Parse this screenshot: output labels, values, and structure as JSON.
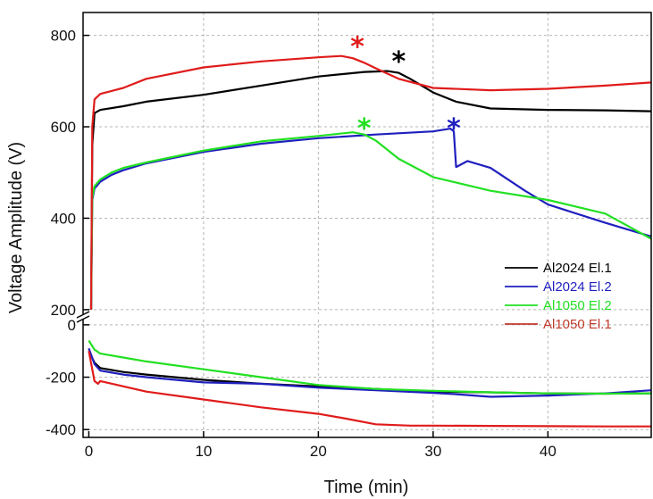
{
  "chart_data": {
    "type": "line",
    "title": "",
    "xlabel": "Time (min)",
    "ylabel": "Voltage Amplitude (V)",
    "xlim": [
      -0.5,
      49
    ],
    "x_ticks": [
      0,
      10,
      20,
      30,
      40
    ],
    "y_upper": {
      "ylim": [
        190,
        850
      ],
      "ticks": [
        200,
        400,
        600,
        800
      ]
    },
    "y_lower": {
      "ylim": [
        -430,
        20
      ],
      "ticks": [
        0,
        -200,
        -400
      ]
    },
    "axis_break": true,
    "grid": true,
    "grid_style": "dashed",
    "legend_position": "lower-right of upper panel",
    "colors": {
      "Al2024 El.1": "#000000",
      "Al2024 El.2": "#1f1fbf",
      "Al1050 El.2": "#22e022",
      "Al1050 El.1": "#e01b1b",
      "Al1050 El.1 legend": "#c0392b"
    },
    "series": [
      {
        "name": "Al2024 El.1",
        "color": "#000000",
        "upper": {
          "x": [
            0.2,
            0.3,
            0.5,
            1,
            3,
            5,
            10,
            15,
            20,
            24,
            26,
            27,
            28,
            30,
            32,
            35,
            40,
            45,
            49
          ],
          "y": [
            200,
            560,
            630,
            637,
            645,
            655,
            670,
            690,
            710,
            720,
            722,
            718,
            705,
            675,
            655,
            640,
            637,
            636,
            634
          ]
        },
        "lower": {
          "x": [
            0,
            0.5,
            1,
            3,
            5,
            10,
            15,
            20,
            25,
            30,
            35,
            40,
            45,
            49
          ],
          "y": [
            -100,
            -145,
            -165,
            -180,
            -190,
            -210,
            -225,
            -235,
            -245,
            -255,
            -258,
            -262,
            -263,
            -262
          ]
        }
      },
      {
        "name": "Al2024 El.2",
        "color": "#1f1fbf",
        "upper": {
          "x": [
            0.2,
            0.3,
            0.5,
            1,
            2,
            3,
            5,
            10,
            15,
            20,
            25,
            30,
            31.5,
            31.8,
            32,
            33,
            35,
            38,
            40,
            45,
            49
          ],
          "y": [
            200,
            440,
            465,
            480,
            495,
            505,
            520,
            545,
            563,
            575,
            583,
            590,
            596,
            590,
            512,
            525,
            510,
            460,
            430,
            390,
            360
          ]
        },
        "lower": {
          "x": [
            0,
            0.5,
            1,
            3,
            5,
            10,
            15,
            20,
            25,
            30,
            32,
            35,
            40,
            45,
            49
          ],
          "y": [
            -90,
            -150,
            -175,
            -190,
            -200,
            -220,
            -225,
            -240,
            -250,
            -260,
            -265,
            -275,
            -270,
            -262,
            -250
          ]
        }
      },
      {
        "name": "Al1050 El.2",
        "color": "#22e022",
        "upper": {
          "x": [
            0.2,
            0.3,
            0.5,
            1,
            2,
            3,
            5,
            10,
            15,
            20,
            23,
            24,
            25,
            27,
            30,
            35,
            40,
            45,
            49
          ],
          "y": [
            200,
            445,
            470,
            485,
            500,
            510,
            522,
            548,
            568,
            580,
            588,
            583,
            570,
            530,
            490,
            460,
            440,
            410,
            355
          ]
        },
        "lower": {
          "x": [
            0,
            0.5,
            1,
            3,
            5,
            10,
            15,
            20,
            25,
            30,
            35,
            40,
            45,
            49
          ],
          "y": [
            -60,
            -95,
            -110,
            -125,
            -140,
            -170,
            -200,
            -230,
            -245,
            -252,
            -258,
            -262,
            -263,
            -262
          ]
        }
      },
      {
        "name": "Al1050 El.1",
        "color": "#e01b1b",
        "upper": {
          "x": [
            0.2,
            0.3,
            0.5,
            1,
            3,
            5,
            10,
            15,
            20,
            22,
            23,
            24,
            25,
            27,
            30,
            35,
            40,
            45,
            49
          ],
          "y": [
            200,
            600,
            660,
            672,
            685,
            705,
            730,
            743,
            752,
            755,
            750,
            740,
            728,
            705,
            685,
            680,
            683,
            690,
            697
          ]
        },
        "lower": {
          "x": [
            0,
            0.5,
            0.8,
            1,
            3,
            5,
            10,
            15,
            20,
            22,
            25,
            28,
            30,
            35,
            40,
            45,
            49
          ],
          "y": [
            -100,
            -215,
            -225,
            -215,
            -235,
            -255,
            -285,
            -315,
            -340,
            -355,
            -380,
            -385,
            -385,
            -386,
            -387,
            -388,
            -388
          ]
        }
      }
    ],
    "annotations": [
      {
        "text": "*",
        "color": "#e01b1b",
        "x": 23.4,
        "y": 790
      },
      {
        "text": "*",
        "color": "#000000",
        "x": 27,
        "y": 758
      },
      {
        "text": "*",
        "color": "#22e022",
        "x": 24,
        "y": 612
      },
      {
        "text": "*",
        "color": "#1f1fbf",
        "x": 31.8,
        "y": 612
      }
    ]
  }
}
